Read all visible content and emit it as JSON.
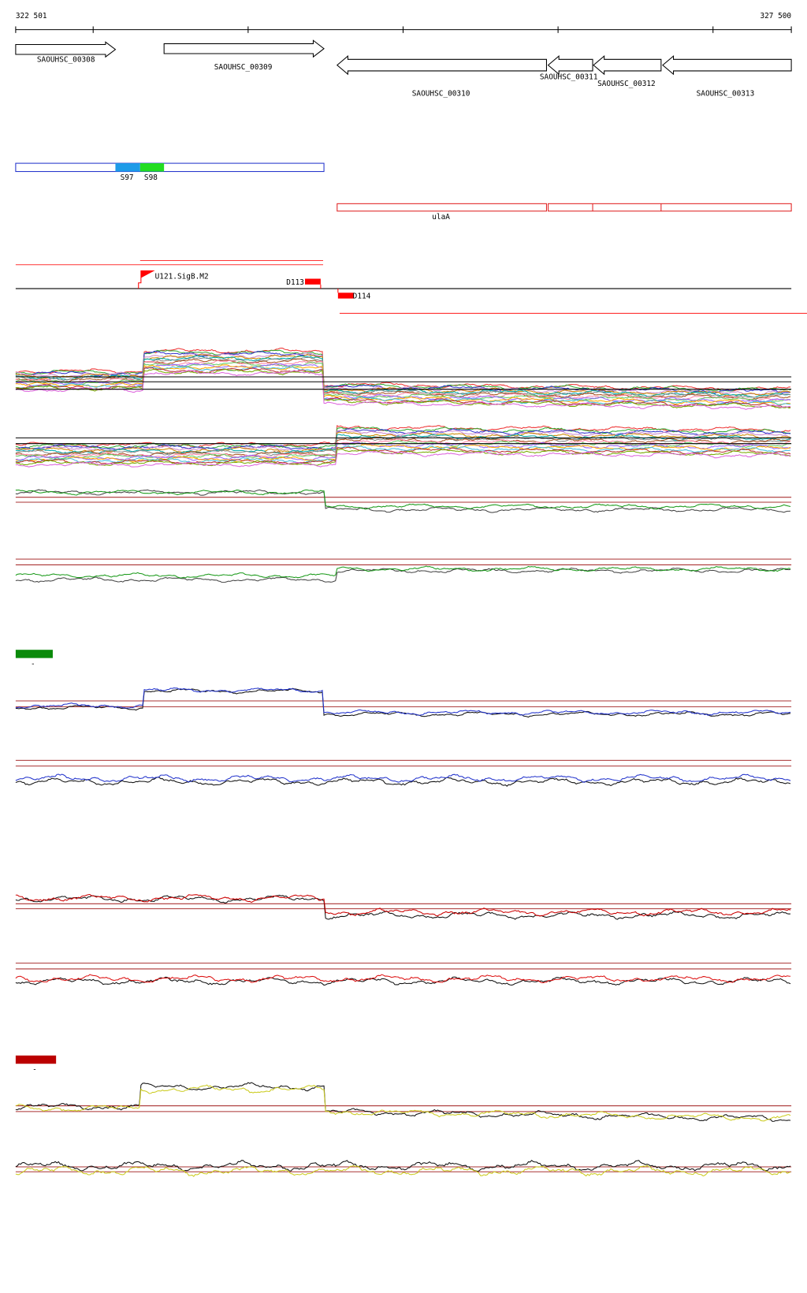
{
  "ruler": {
    "start": "322 501",
    "end": "327 500"
  },
  "genes": [
    "SAOUHSC_00308",
    "SAOUHSC_00309",
    "SAOUHSC_00310",
    "SAOUHSC_00311",
    "SAOUHSC_00312",
    "SAOUHSC_00313"
  ],
  "segments": [
    "S97",
    "S98"
  ],
  "operon": "ulaA",
  "features": [
    "U121.SigB.M2",
    "D113",
    "D114"
  ],
  "legends": [
    "-",
    "-"
  ]
}
